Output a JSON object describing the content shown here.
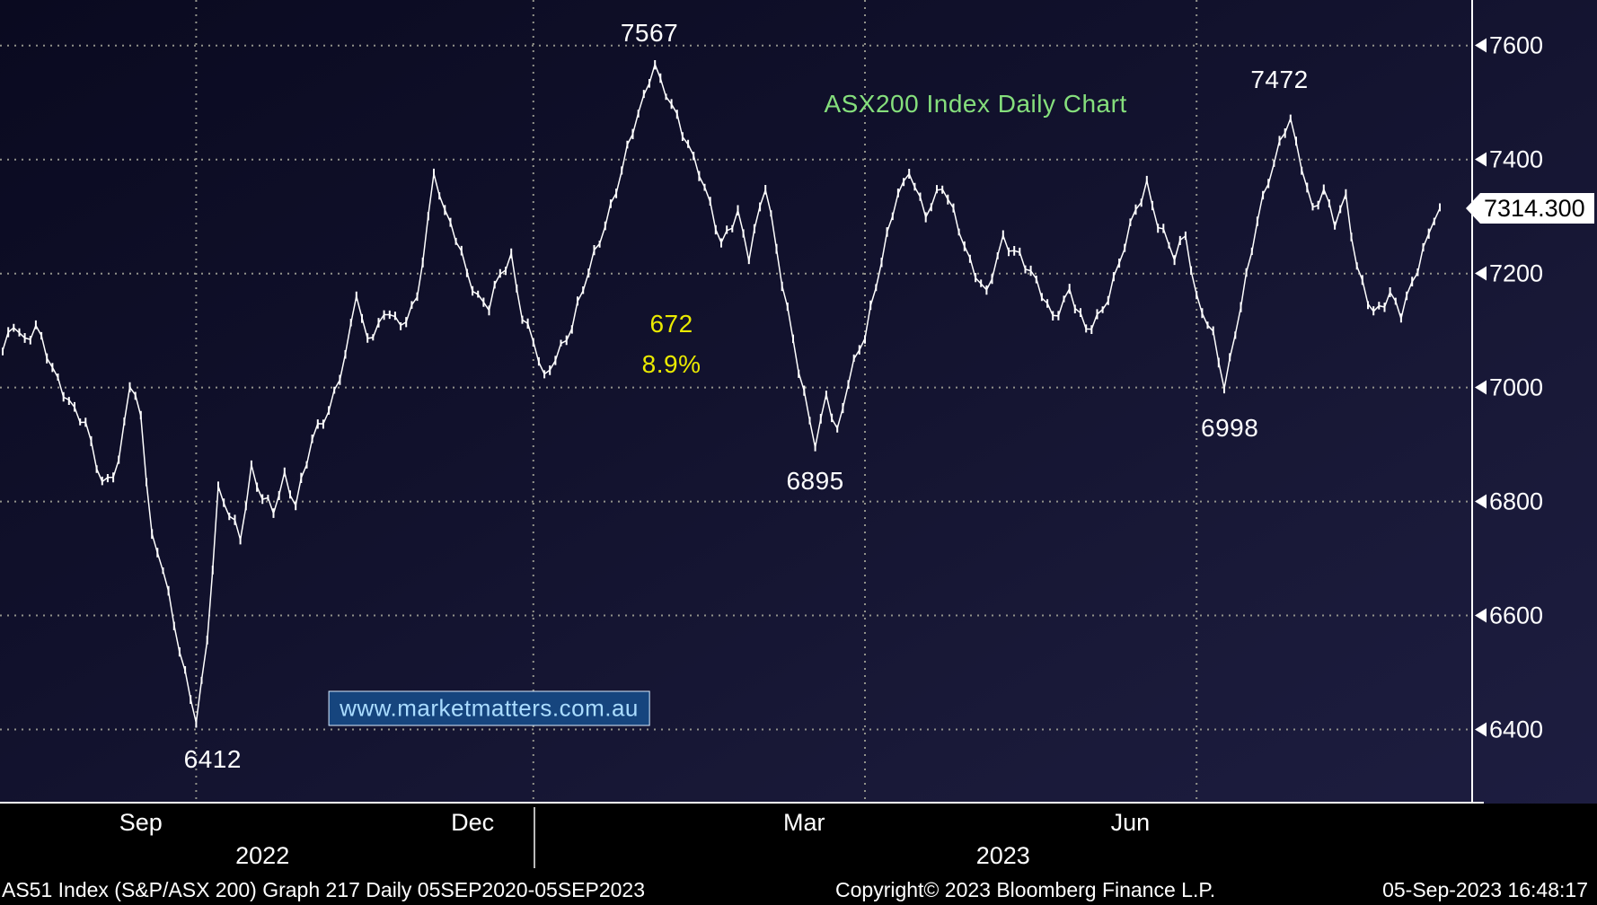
{
  "chart_data": {
    "type": "line",
    "title": "ASX200 Index Daily Chart",
    "series_name": "AS51 Index (S&P/ASX 200)",
    "ylim": [
      6270,
      7680
    ],
    "yticks": [
      7600,
      7400,
      7200,
      7000,
      6800,
      6600,
      6400
    ],
    "x_total_days": 261,
    "vertical_gridline_days": [
      35,
      96,
      156,
      216
    ],
    "month_labels": [
      {
        "label": "Sep",
        "day": 25
      },
      {
        "label": "Dec",
        "day": 85
      },
      {
        "label": "Mar",
        "day": 145
      },
      {
        "label": "Jun",
        "day": 204
      }
    ],
    "year_labels": [
      {
        "label": "2022",
        "day": 47
      },
      {
        "label": "2023",
        "day": 181
      }
    ],
    "year_divider_day": 96,
    "last_price": 7314.3,
    "last_price_label": "7314.300",
    "key_days": [
      35,
      64,
      78,
      118,
      147,
      164,
      221,
      233,
      260
    ],
    "anchors": [
      [
        0,
        7060
      ],
      [
        2,
        7115
      ],
      [
        4,
        7085
      ],
      [
        6,
        7105
      ],
      [
        9,
        7030
      ],
      [
        12,
        6980
      ],
      [
        15,
        6930
      ],
      [
        18,
        6830
      ],
      [
        21,
        6870
      ],
      [
        23,
        7005
      ],
      [
        25,
        6945
      ],
      [
        27,
        6740
      ],
      [
        29,
        6690
      ],
      [
        31,
        6580
      ],
      [
        33,
        6495
      ],
      [
        35,
        6412
      ],
      [
        37,
        6560
      ],
      [
        39,
        6815
      ],
      [
        41,
        6775
      ],
      [
        43,
        6740
      ],
      [
        45,
        6860
      ],
      [
        47,
        6805
      ],
      [
        49,
        6780
      ],
      [
        51,
        6845
      ],
      [
        53,
        6800
      ],
      [
        56,
        6905
      ],
      [
        59,
        6960
      ],
      [
        62,
        7060
      ],
      [
        64,
        7160
      ],
      [
        66,
        7080
      ],
      [
        68,
        7115
      ],
      [
        70,
        7140
      ],
      [
        72,
        7100
      ],
      [
        75,
        7155
      ],
      [
        78,
        7375
      ],
      [
        80,
        7305
      ],
      [
        82,
        7260
      ],
      [
        84,
        7205
      ],
      [
        86,
        7160
      ],
      [
        88,
        7140
      ],
      [
        90,
        7195
      ],
      [
        92,
        7230
      ],
      [
        94,
        7130
      ],
      [
        96,
        7080
      ],
      [
        98,
        7010
      ],
      [
        100,
        7055
      ],
      [
        103,
        7110
      ],
      [
        106,
        7200
      ],
      [
        109,
        7290
      ],
      [
        112,
        7380
      ],
      [
        115,
        7480
      ],
      [
        118,
        7567
      ],
      [
        120,
        7515
      ],
      [
        123,
        7445
      ],
      [
        126,
        7385
      ],
      [
        128,
        7320
      ],
      [
        130,
        7245
      ],
      [
        133,
        7310
      ],
      [
        135,
        7235
      ],
      [
        138,
        7350
      ],
      [
        140,
        7240
      ],
      [
        142,
        7140
      ],
      [
        144,
        7035
      ],
      [
        146,
        6940
      ],
      [
        147,
        6895
      ],
      [
        149,
        6990
      ],
      [
        151,
        6925
      ],
      [
        153,
        7010
      ],
      [
        156,
        7090
      ],
      [
        159,
        7230
      ],
      [
        162,
        7340
      ],
      [
        164,
        7375
      ],
      [
        167,
        7310
      ],
      [
        170,
        7350
      ],
      [
        173,
        7280
      ],
      [
        175,
        7225
      ],
      [
        178,
        7160
      ],
      [
        181,
        7260
      ],
      [
        184,
        7235
      ],
      [
        187,
        7180
      ],
      [
        190,
        7125
      ],
      [
        193,
        7170
      ],
      [
        196,
        7095
      ],
      [
        199,
        7140
      ],
      [
        202,
        7215
      ],
      [
        205,
        7310
      ],
      [
        207,
        7360
      ],
      [
        209,
        7290
      ],
      [
        212,
        7225
      ],
      [
        214,
        7270
      ],
      [
        216,
        7160
      ],
      [
        219,
        7090
      ],
      [
        221,
        6998
      ],
      [
        224,
        7150
      ],
      [
        227,
        7290
      ],
      [
        229,
        7360
      ],
      [
        231,
        7430
      ],
      [
        233,
        7472
      ],
      [
        235,
        7385
      ],
      [
        237,
        7305
      ],
      [
        239,
        7350
      ],
      [
        241,
        7295
      ],
      [
        243,
        7330
      ],
      [
        245,
        7205
      ],
      [
        248,
        7135
      ],
      [
        251,
        7160
      ],
      [
        253,
        7125
      ],
      [
        255,
        7185
      ],
      [
        257,
        7245
      ],
      [
        259,
        7295
      ],
      [
        260,
        7314.3
      ]
    ],
    "annotations": [
      {
        "name": "peak-label-7567",
        "text": "7567",
        "day": 117,
        "value": 7622,
        "color": "#ffffff",
        "style": "plain"
      },
      {
        "name": "chart-title",
        "text": "ASX200 Index Daily Chart",
        "day": 176,
        "value": 7498,
        "color": "#85df7c",
        "style": "title"
      },
      {
        "name": "peak-label-7472",
        "text": "7472",
        "day": 231,
        "value": 7540,
        "color": "#ffffff",
        "style": "plain"
      },
      {
        "name": "gain-points-label",
        "text": "672",
        "day": 121,
        "value": 7112,
        "color": "#eaea00",
        "style": "plain"
      },
      {
        "name": "gain-percent-label",
        "text": "8.9%",
        "day": 121,
        "value": 7040,
        "color": "#eaea00",
        "style": "plain"
      },
      {
        "name": "low-label-6998",
        "text": "6998",
        "day": 222,
        "value": 6928,
        "color": "#ffffff",
        "style": "plain"
      },
      {
        "name": "low-label-6895",
        "text": "6895",
        "day": 147,
        "value": 6835,
        "color": "#ffffff",
        "style": "plain"
      },
      {
        "name": "low-label-6412",
        "text": "6412",
        "day": 38,
        "value": 6348,
        "color": "#ffffff",
        "style": "plain"
      },
      {
        "name": "watermark",
        "text": "www.marketmatters.com.au",
        "day": 88,
        "value": 6437,
        "color": "#aadcff",
        "style": "boxed"
      }
    ],
    "colors": {
      "line": "#ffffff",
      "grid": "#92928a",
      "axis": "#ffffff",
      "flag_bg": "#ffffff",
      "flag_text": "#000000",
      "background_top": "#0a0a20",
      "background_bottom": "#1d1d40"
    },
    "legend_position": "none",
    "grid": "dotted"
  },
  "footer": {
    "left": "AS51 Index (S&P/ASX 200) Graph 217  Daily 05SEP2020-05SEP2023",
    "center": "Copyright© 2023 Bloomberg Finance L.P.",
    "right": "05-Sep-2023 16:48:17"
  }
}
